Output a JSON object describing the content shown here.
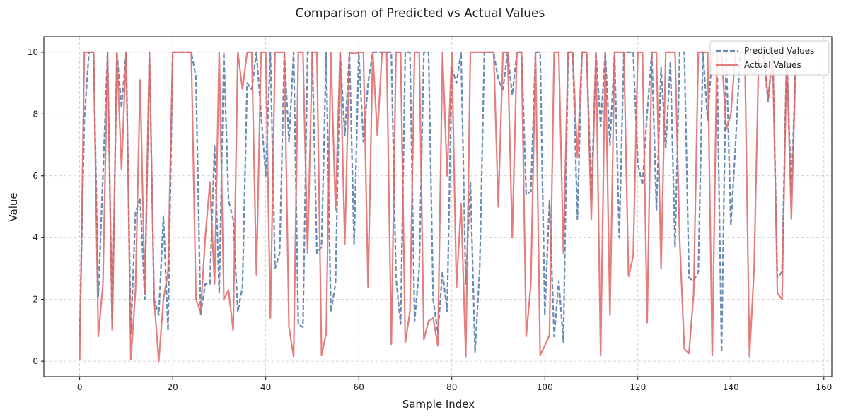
{
  "chart_data": {
    "type": "line",
    "title": "Comparison of Predicted vs Actual Values",
    "xlabel": "Sample Index",
    "ylabel": "Value",
    "xlim": [
      -7.7,
      161.7
    ],
    "ylim": [
      -0.5,
      10.5
    ],
    "xticks": [
      0,
      20,
      40,
      60,
      80,
      100,
      120,
      140,
      160
    ],
    "yticks": [
      0,
      2,
      4,
      6,
      8,
      10
    ],
    "grid": true,
    "legend_position": "top-right",
    "series": [
      {
        "name": "Predicted Values",
        "color": "#4f77a5",
        "style": "dashed",
        "values": [
          0.8,
          7.8,
          10,
          10,
          2.1,
          6,
          10,
          1.1,
          10,
          8.2,
          10,
          0.9,
          4.8,
          5.3,
          2.0,
          10,
          2.0,
          1.5,
          4.7,
          1.0,
          10,
          10,
          10,
          10,
          10,
          9.2,
          1.5,
          2.5,
          2.5,
          7.0,
          2.2,
          10,
          5.2,
          4.6,
          1.6,
          2.4,
          9.0,
          8.8,
          10,
          8.0,
          6.0,
          10,
          3.0,
          3.5,
          10,
          7.1,
          10,
          1.2,
          1.1,
          10,
          10,
          3.5,
          3.7,
          10,
          1.6,
          2.5,
          10,
          7.3,
          10,
          3.8,
          10,
          7.1,
          9.0,
          10,
          10,
          10,
          10,
          10,
          2.7,
          1.2,
          10,
          10,
          1.3,
          3.0,
          10,
          10,
          2.0,
          0.9,
          2.9,
          1.6,
          9.5,
          9.0,
          10,
          2.5,
          5.8,
          0.3,
          3.0,
          10,
          10,
          10,
          9.1,
          8.8,
          10,
          8.6,
          10,
          10,
          5.4,
          5.5,
          10,
          10,
          1.5,
          5.2,
          0.8,
          2.6,
          0.6,
          10,
          10,
          4.6,
          10,
          10,
          5.3,
          10,
          7.6,
          10,
          7.0,
          10,
          4.0,
          10,
          10,
          10,
          6.4,
          5.7,
          8.0,
          10,
          4.9,
          9.5,
          6.9,
          9.7,
          3.7,
          10,
          10,
          2.7,
          2.6,
          2.9,
          10,
          7.8,
          10,
          10,
          0.3,
          10,
          4.4,
          7.0,
          10,
          10,
          10,
          10,
          10,
          10,
          8.4,
          10,
          2.7,
          2.9,
          10,
          5.4,
          10
        ],
        "x_start": 0
      },
      {
        "name": "Actual Values",
        "color": "#e06666",
        "style": "solid",
        "values": [
          0.05,
          10,
          10,
          10,
          0.8,
          2.5,
          10,
          1.0,
          10,
          6.2,
          10,
          0.05,
          2.3,
          9.1,
          2.2,
          10,
          2.0,
          0.0,
          2.0,
          2.9,
          10,
          10,
          10,
          10,
          10,
          2.0,
          1.6,
          4.0,
          5.8,
          2.5,
          10,
          2.0,
          2.3,
          1.0,
          10,
          8.8,
          10,
          10,
          2.8,
          10,
          10,
          1.4,
          10,
          10,
          10,
          1.1,
          0.15,
          10,
          10,
          3.5,
          10,
          10,
          0.2,
          0.9,
          10,
          4.9,
          10,
          3.8,
          10,
          9.95,
          10,
          10,
          2.4,
          10,
          7.3,
          10,
          10,
          0.55,
          10,
          10,
          0.6,
          1.6,
          10,
          10,
          0.7,
          1.3,
          1.4,
          0.5,
          10,
          6.0,
          10,
          2.4,
          5.1,
          0.15,
          10,
          10,
          10,
          10,
          10,
          10,
          5.0,
          10,
          10,
          4.0,
          10,
          10,
          0.8,
          2.5,
          10,
          0.2,
          0.5,
          0.85,
          10,
          10,
          3.5,
          10,
          10,
          6.6,
          10,
          10,
          4.6,
          10,
          0.2,
          10,
          1.5,
          10,
          10,
          10,
          2.75,
          3.4,
          10,
          10,
          1.25,
          10,
          10,
          3.0,
          10,
          10,
          10,
          3.9,
          0.4,
          0.25,
          2.2,
          10,
          10,
          10,
          0.2,
          10,
          10,
          7.5,
          8.0,
          10,
          10,
          10,
          0.15,
          3.0,
          10,
          10,
          8.5,
          10,
          2.2,
          2.0,
          10,
          4.6,
          10
        ],
        "x_start": 0
      }
    ]
  }
}
